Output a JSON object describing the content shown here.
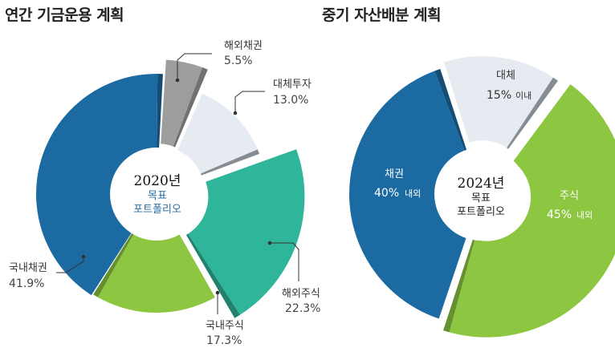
{
  "left": {
    "title": "연간 기금운용 계획",
    "center": {
      "year": "2020년",
      "line1": "목표",
      "line2": "포트폴리오"
    }
  },
  "right": {
    "title": "중기 자산배분 계획",
    "center": {
      "year": "2024년",
      "line1": "목표",
      "line2": "포트폴리오"
    }
  },
  "chart_data": [
    {
      "type": "pie",
      "title": "연간 기금운용 계획",
      "slices": [
        {
          "label": "국내채권",
          "value": 41.9,
          "display": "41.9%",
          "color": "#1b6aa1"
        },
        {
          "label": "해외채권",
          "value": 5.5,
          "display": "5.5%",
          "color": "#9d9d9d"
        },
        {
          "label": "대체투자",
          "value": 13.0,
          "display": "13.0%",
          "color": "#e5ebf0"
        },
        {
          "label": "해외주식",
          "value": 22.3,
          "display": "22.3%",
          "color": "#2fb59a"
        },
        {
          "label": "국내주식",
          "value": 17.3,
          "display": "17.3%",
          "color": "#8dc641"
        }
      ]
    },
    {
      "type": "pie",
      "title": "중기 자산배분 계획",
      "slices": [
        {
          "label": "채권",
          "value": 40,
          "display": "40%",
          "suffix": "내외",
          "color": "#1b6aa1"
        },
        {
          "label": "대체",
          "value": 15,
          "display": "15%",
          "suffix": "이내",
          "color": "#e5ebf0"
        },
        {
          "label": "주식",
          "value": 45,
          "display": "45%",
          "suffix": "내외",
          "color": "#8dc641"
        }
      ]
    }
  ]
}
